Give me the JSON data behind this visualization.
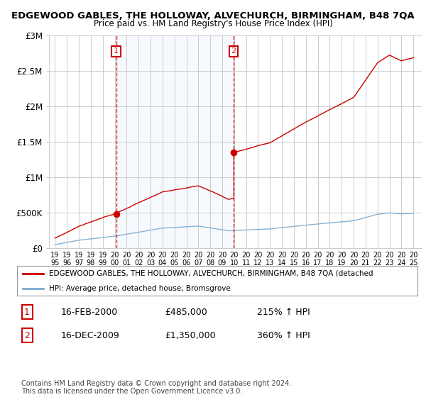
{
  "title": "EDGEWOOD GABLES, THE HOLLOWAY, ALVECHURCH, BIRMINGHAM, B48 7QA",
  "subtitle": "Price paid vs. HM Land Registry's House Price Index (HPI)",
  "background_color": "#ffffff",
  "grid_color": "#cccccc",
  "hpi_color": "#7aaad0",
  "price_color": "#cc0000",
  "shade_color": "#ddeeff",
  "sale1_year": 2000.12,
  "sale1_price": 485000,
  "sale2_year": 2009.95,
  "sale2_price": 1350000,
  "ylabel_ticks": [
    "£0",
    "£500K",
    "£1M",
    "£1.5M",
    "£2M",
    "£2.5M",
    "£3M"
  ],
  "ylabel_values": [
    0,
    500000,
    1000000,
    1500000,
    2000000,
    2500000,
    3000000
  ],
  "xlim": [
    1994.5,
    2025.7
  ],
  "ylim": [
    0,
    3000000
  ],
  "legend_line1": "EDGEWOOD GABLES, THE HOLLOWAY, ALVECHURCH, BIRMINGHAM, B48 7QA (detached",
  "legend_line2": "HPI: Average price, detached house, Bromsgrove",
  "annotation1_date": "16-FEB-2000",
  "annotation1_price": "£485,000",
  "annotation1_hpi": "215% ↑ HPI",
  "annotation2_date": "16-DEC-2009",
  "annotation2_price": "£1,350,000",
  "annotation2_hpi": "360% ↑ HPI",
  "footer": "Contains HM Land Registry data © Crown copyright and database right 2024.\nThis data is licensed under the Open Government Licence v3.0."
}
